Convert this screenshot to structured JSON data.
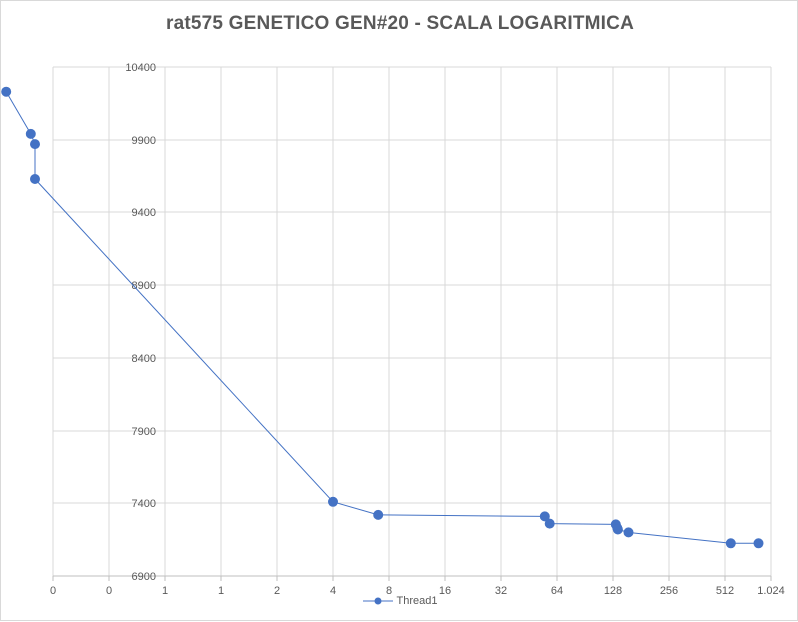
{
  "chart_data": {
    "type": "line",
    "title": "rat575 GENETICO GEN#20 - SCALA LOGARITMICA",
    "xlabel": "",
    "ylabel": "",
    "x_scale": "log2",
    "x_tick_labels": [
      "0",
      "0",
      "1",
      "1",
      "2",
      "4",
      "8",
      "16",
      "32",
      "64",
      "128",
      "256",
      "512",
      "1.024"
    ],
    "y_tick_labels": [
      "6900",
      "7400",
      "7900",
      "8400",
      "8900",
      "9400",
      "9900",
      "10400"
    ],
    "ylim": [
      6900,
      10400
    ],
    "grid": true,
    "legend_position": "bottom",
    "series": [
      {
        "name": "Thread1",
        "color": "#4472c4",
        "points": [
          {
            "x": 0.14,
            "y": 10230
          },
          {
            "x": 0.19,
            "y": 9940
          },
          {
            "x": 0.2,
            "y": 9870
          },
          {
            "x": 0.2,
            "y": 9630
          },
          {
            "x": 8,
            "y": 7410
          },
          {
            "x": 14,
            "y": 7320
          },
          {
            "x": 110,
            "y": 7310
          },
          {
            "x": 117,
            "y": 7260
          },
          {
            "x": 265,
            "y": 7255
          },
          {
            "x": 270,
            "y": 7230
          },
          {
            "x": 272,
            "y": 7220
          },
          {
            "x": 310,
            "y": 7200
          },
          {
            "x": 1100,
            "y": 7125
          },
          {
            "x": 1550,
            "y": 7125
          }
        ]
      }
    ]
  }
}
